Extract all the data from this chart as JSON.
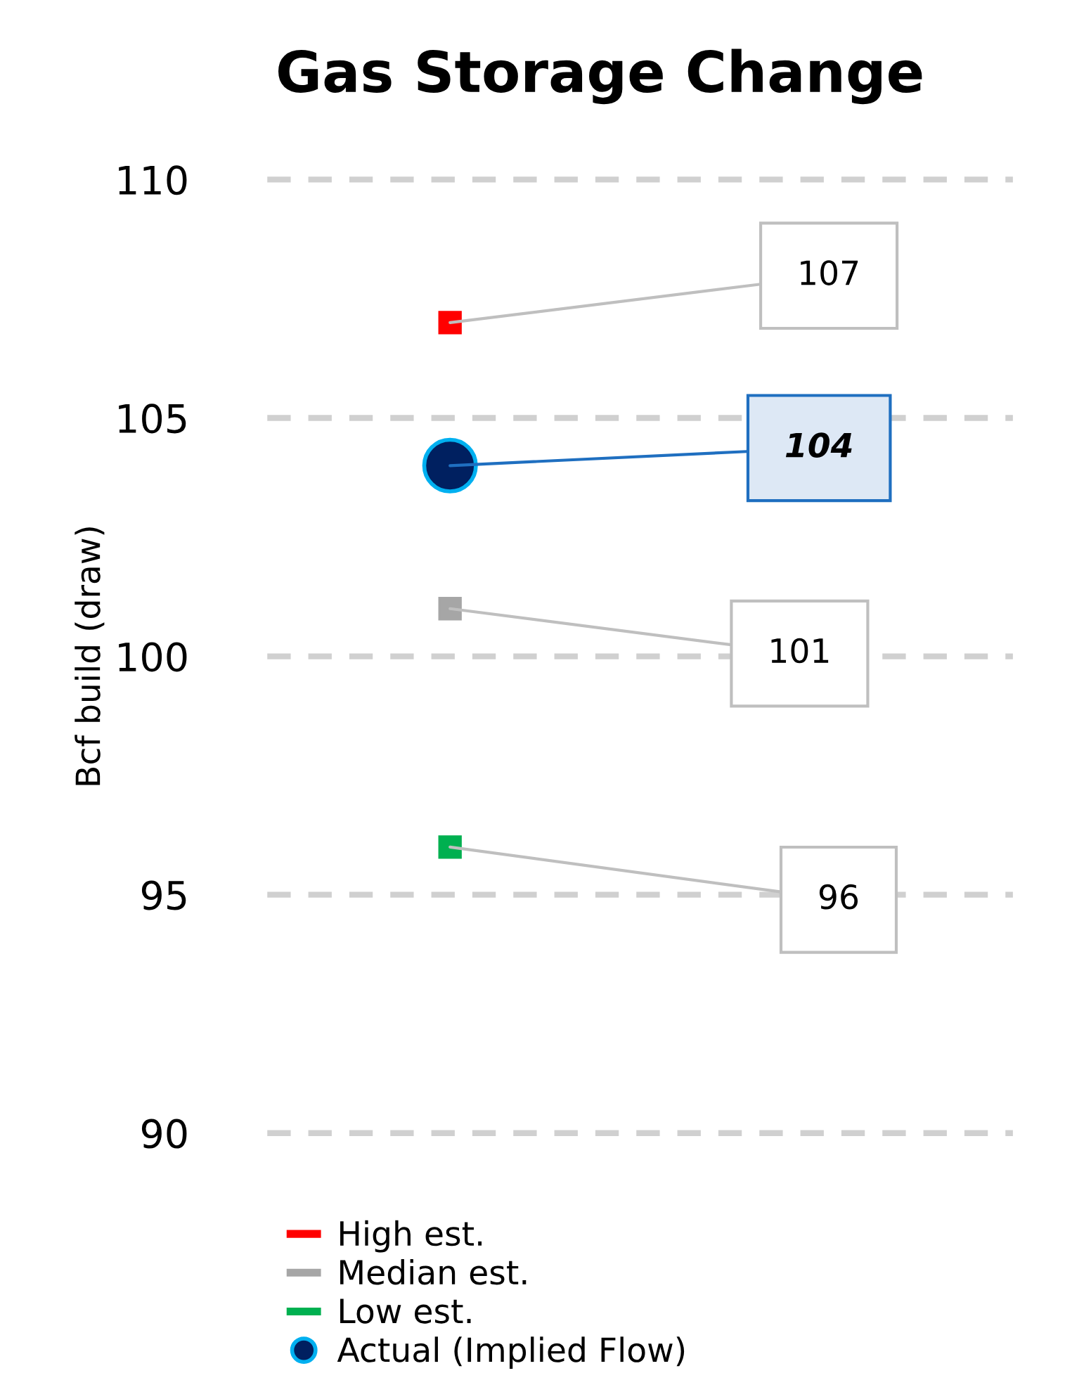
{
  "chart_data": {
    "type": "scatter",
    "title": "Gas Storage Change",
    "ylabel": "Bcf build (draw)",
    "categories": [
      null
    ],
    "series": [
      {
        "name": "High est.",
        "color": "#ff0000",
        "values": [
          107
        ],
        "marker": "square"
      },
      {
        "name": "Median est.",
        "color": "#a6a6a6",
        "values": [
          101
        ],
        "marker": "square"
      },
      {
        "name": "Low est.",
        "color": "#00b050",
        "values": [
          96
        ],
        "marker": "square"
      },
      {
        "name": "Actual (Implied Flow)",
        "color": "#002060",
        "values": [
          104
        ],
        "marker": "circle"
      }
    ],
    "ylim": [
      90,
      110
    ],
    "yticks": [
      90,
      95,
      100,
      105,
      110
    ],
    "grid": "y",
    "legend": "bottom left",
    "annotations": [
      "107",
      "101",
      "96",
      "104"
    ]
  }
}
